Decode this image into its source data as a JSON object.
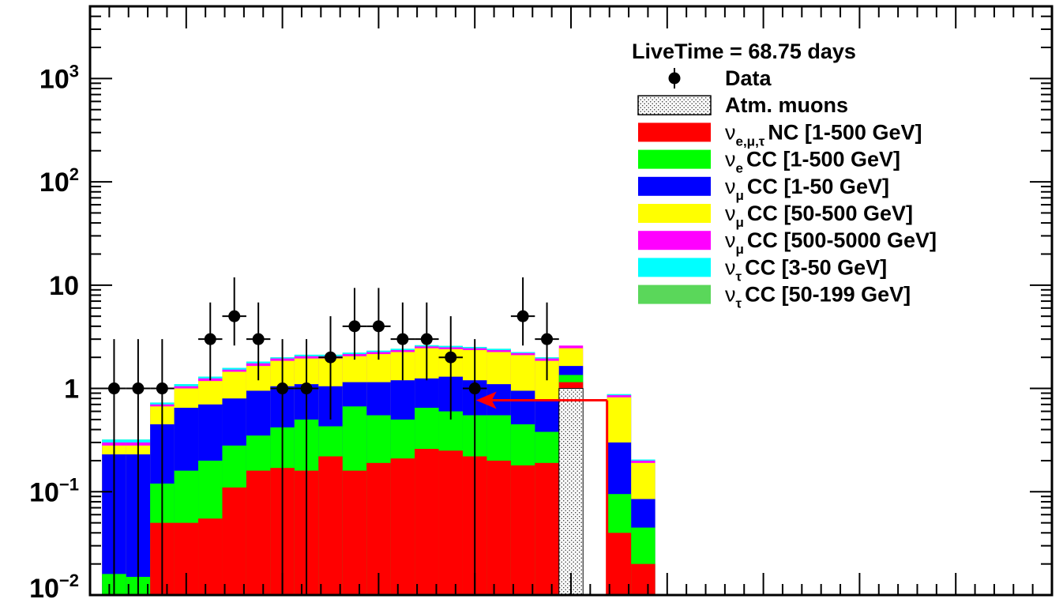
{
  "chart_data": {
    "type": "bar",
    "stacked": true,
    "log_y": true,
    "ylim": [
      0.01,
      5000
    ],
    "xlabel": "",
    "ylabel": "",
    "y_ticks": [
      {
        "value": 1000,
        "base": "10",
        "exp": "3"
      },
      {
        "value": 100,
        "base": "10",
        "exp": "2"
      },
      {
        "value": 10,
        "base": "10",
        "exp": ""
      },
      {
        "value": 1,
        "base": "1",
        "exp": ""
      },
      {
        "value": 0.1,
        "base": "10",
        "exp": "−1"
      },
      {
        "value": 0.01,
        "base": "10",
        "exp": "−2"
      }
    ],
    "bin_count": 40,
    "legend_title": "LiveTime = 68.75 days",
    "legend_position": "top-right",
    "legend": [
      {
        "kind": "marker",
        "name": "Data"
      },
      {
        "kind": "hatch",
        "name": "Atm. muons",
        "color": "#e6e6e6"
      },
      {
        "kind": "fill",
        "color": "#ff0000",
        "nu": "ν",
        "sub": "e,μ,τ",
        "text": "NC [1-500 GeV]"
      },
      {
        "kind": "fill",
        "color": "#00ff00",
        "nu": "ν",
        "sub": "e",
        "text": "CC [1-500 GeV]"
      },
      {
        "kind": "fill",
        "color": "#0000ff",
        "nu": "ν",
        "sub": "μ",
        "text": "CC [1-50 GeV]"
      },
      {
        "kind": "fill",
        "color": "#ffff00",
        "nu": "ν",
        "sub": "μ",
        "text": "CC [50-500 GeV]"
      },
      {
        "kind": "fill",
        "color": "#ff00ff",
        "nu": "ν",
        "sub": "μ",
        "text": "CC [500-5000 GeV]"
      },
      {
        "kind": "fill",
        "color": "#00ffff",
        "nu": "ν",
        "sub": "τ",
        "text": "CC [3-50 GeV]"
      },
      {
        "kind": "fill",
        "color": "#5ad75a",
        "nu": "ν",
        "sub": "τ",
        "text": "CC [50-199 GeV]"
      }
    ],
    "stack_series": [
      {
        "name": "ν e,μ,τ NC [1-500 GeV]",
        "color": "#ff0000",
        "values": [
          0.01,
          0.01,
          0.05,
          0.05,
          0.055,
          0.11,
          0.16,
          0.17,
          0.16,
          0.22,
          0.16,
          0.19,
          0.21,
          0.26,
          0.25,
          0.22,
          0.2,
          0.18,
          0.19,
          0.01,
          0.04,
          0.02
        ]
      },
      {
        "name": "ν e CC [1-500 GeV]",
        "color": "#00ff00",
        "values": [
          0.016,
          0.015,
          0.12,
          0.16,
          0.2,
          0.28,
          0.35,
          0.42,
          0.5,
          0.43,
          0.67,
          0.55,
          0.5,
          0.65,
          0.6,
          0.55,
          0.55,
          0.45,
          0.38,
          0.01,
          0.095,
          0.045
        ]
      },
      {
        "name": "ν μ CC [1-50 GeV]",
        "color": "#0000ff",
        "values": [
          0.23,
          0.23,
          0.45,
          0.65,
          0.7,
          0.8,
          0.95,
          1.05,
          1.1,
          1.05,
          1.15,
          1.15,
          1.2,
          1.25,
          1.3,
          1.2,
          1.1,
          0.95,
          0.75,
          0.01,
          0.3,
          0.085
        ]
      },
      {
        "name": "ν μ CC [50-500 GeV]",
        "color": "#ffff00",
        "values": [
          0.28,
          0.28,
          0.67,
          1.0,
          1.18,
          1.45,
          1.65,
          1.85,
          1.95,
          1.95,
          2.05,
          2.15,
          2.25,
          2.45,
          2.4,
          2.35,
          2.25,
          2.1,
          1.85,
          0.01,
          0.82,
          0.19
        ]
      },
      {
        "name": "ν μ CC [500-5000 GeV]",
        "color": "#ff00ff",
        "values": [
          0.3,
          0.3,
          0.7,
          1.05,
          1.25,
          1.52,
          1.75,
          1.95,
          2.05,
          2.05,
          2.15,
          2.25,
          2.35,
          2.55,
          2.5,
          2.45,
          2.35,
          2.2,
          1.95,
          0.01,
          0.86,
          0.2
        ]
      },
      {
        "name": "ν τ CC [3-50 GeV]",
        "color": "#00ffff",
        "values": [
          0.32,
          0.32,
          0.73,
          1.1,
          1.3,
          1.58,
          1.82,
          2.0,
          2.12,
          2.12,
          2.22,
          2.32,
          2.42,
          2.62,
          2.58,
          2.52,
          2.42,
          2.25,
          2.0,
          0.01,
          0.88,
          0.205
        ]
      },
      {
        "name": "ν τ CC [50-199 GeV]",
        "color": "#5ad75a",
        "values": [
          0.32,
          0.32,
          0.73,
          1.1,
          1.3,
          1.58,
          1.82,
          2.0,
          2.12,
          2.12,
          2.22,
          2.32,
          2.42,
          2.62,
          2.58,
          2.52,
          2.42,
          2.25,
          2.0,
          0.01,
          0.88,
          0.205
        ]
      }
    ],
    "nu_bins": [
      0,
      1,
      2,
      3,
      4,
      5,
      6,
      7,
      8,
      9,
      10,
      11,
      12,
      13,
      14,
      15,
      16,
      17,
      18,
      20,
      21,
      22
    ],
    "atm_muon_bin": {
      "bin": 19,
      "value": 1.0,
      "stack_on_top": [
        {
          "color": "#ff0000",
          "value": 1.15
        },
        {
          "color": "#00ff00",
          "value": 1.35
        },
        {
          "color": "#0000ff",
          "value": 1.65
        },
        {
          "color": "#ffff00",
          "value": 2.45
        },
        {
          "color": "#ff00ff",
          "value": 2.6
        }
      ]
    },
    "data_points": [
      {
        "bin": 0,
        "y": 1,
        "err_lo": 0.99,
        "err_hi": 2.0
      },
      {
        "bin": 1,
        "y": 1,
        "err_lo": 0.99,
        "err_hi": 2.0
      },
      {
        "bin": 2,
        "y": 1,
        "err_lo": 0.99,
        "err_hi": 2.0
      },
      {
        "bin": 4,
        "y": 3,
        "err_lo": 1.8,
        "err_hi": 3.8
      },
      {
        "bin": 5,
        "y": 5,
        "err_lo": 2.4,
        "err_hi": 6.9
      },
      {
        "bin": 6,
        "y": 3,
        "err_lo": 1.8,
        "err_hi": 3.8
      },
      {
        "bin": 7,
        "y": 1,
        "err_lo": 0.99,
        "err_hi": 2.0
      },
      {
        "bin": 8,
        "y": 1,
        "err_lo": 0.99,
        "err_hi": 2.0
      },
      {
        "bin": 9,
        "y": 2,
        "err_lo": 1.5,
        "err_hi": 3.0
      },
      {
        "bin": 10,
        "y": 4,
        "err_lo": 2.1,
        "err_hi": 5.4
      },
      {
        "bin": 11,
        "y": 4,
        "err_lo": 2.1,
        "err_hi": 5.4
      },
      {
        "bin": 12,
        "y": 3,
        "err_lo": 1.8,
        "err_hi": 3.8
      },
      {
        "bin": 13,
        "y": 3,
        "err_lo": 1.8,
        "err_hi": 3.8
      },
      {
        "bin": 14,
        "y": 2,
        "err_lo": 1.5,
        "err_hi": 3.0
      },
      {
        "bin": 15,
        "y": 1,
        "err_lo": 0.99,
        "err_hi": 2.0
      },
      {
        "bin": 17,
        "y": 5,
        "err_lo": 2.4,
        "err_hi": 6.9
      },
      {
        "bin": 18,
        "y": 3,
        "err_lo": 1.8,
        "err_hi": 3.8
      }
    ],
    "cut_arrow": {
      "from_bin_edge": 20,
      "to_bin": 15,
      "y_top": 1,
      "y_bottom": 0.0075,
      "color": "#ff0000"
    }
  }
}
